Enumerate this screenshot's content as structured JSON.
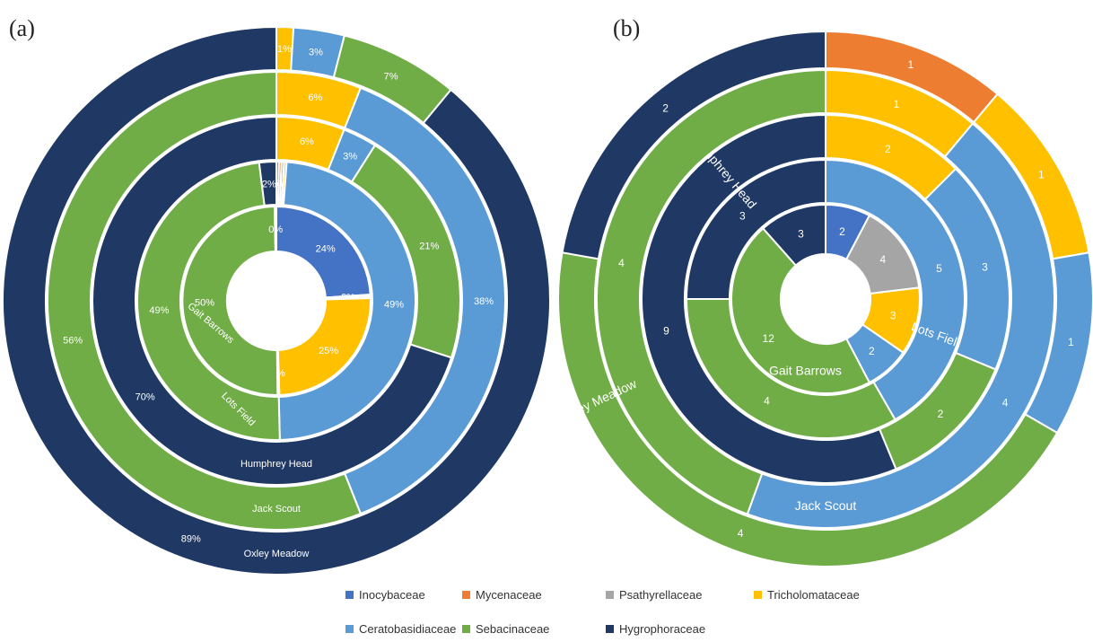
{
  "colors": {
    "Inocybaceae": "#4472c4",
    "Mycenaceae": "#ed7d31",
    "Psathyrellaceae": "#a5a5a5",
    "Tricholomataceae": "#ffc000",
    "Ceratobasidiaceae": "#5b9bd5",
    "Sebacinaceae": "#70ad47",
    "Hygrophoraceae": "#1f3864"
  },
  "legend": {
    "items": [
      "Inocybaceae",
      "Mycenaceae",
      "Psathyrellaceae",
      "Tricholomataceae",
      "Ceratobasidiaceae",
      "Sebacinaceae",
      "Hygrophoraceae"
    ]
  },
  "chart_data": [
    {
      "panel_label": "(a)",
      "type": "pie",
      "subtype": "multi-ring donut (sunburst)",
      "value_unit": "percent",
      "rings": [
        {
          "name": "Gait Barrows",
          "slices": [
            {
              "family": "Inocybaceae",
              "value": 24,
              "label": "24%"
            },
            {
              "family": "Mycenaceae",
              "value": 0.3,
              "label": "0%"
            },
            {
              "family": "Psathyrellaceae",
              "value": 0.3,
              "label": "0%"
            },
            {
              "family": "Tricholomataceae",
              "value": 25,
              "label": "25%"
            },
            {
              "family": "Ceratobasidiaceae",
              "value": 0.3,
              "label": "0%"
            },
            {
              "family": "Sebacinaceae",
              "value": 50,
              "label": "50%"
            },
            {
              "family": "Hygrophoraceae",
              "value": 0.3,
              "label": "0%"
            }
          ]
        },
        {
          "name": "Lots Field",
          "slices": [
            {
              "family": "Inocybaceae",
              "value": 0.3,
              "label": "0%"
            },
            {
              "family": "Mycenaceae",
              "value": 0.3,
              "label": ""
            },
            {
              "family": "Psathyrellaceae",
              "value": 0.3,
              "label": ""
            },
            {
              "family": "Tricholomataceae",
              "value": 0.3,
              "label": "0%"
            },
            {
              "family": "Ceratobasidiaceae",
              "value": 49,
              "label": "49%"
            },
            {
              "family": "Sebacinaceae",
              "value": 49,
              "label": "49%"
            },
            {
              "family": "Hygrophoraceae",
              "value": 2,
              "label": "2%"
            }
          ]
        },
        {
          "name": "Humphrey Head",
          "slices": [
            {
              "family": "Tricholomataceae",
              "value": 6,
              "label": "6%"
            },
            {
              "family": "Ceratobasidiaceae",
              "value": 3,
              "label": "3%"
            },
            {
              "family": "Sebacinaceae",
              "value": 21,
              "label": "21%"
            },
            {
              "family": "Hygrophoraceae",
              "value": 70,
              "label": "70%"
            }
          ]
        },
        {
          "name": "Jack Scout",
          "slices": [
            {
              "family": "Tricholomataceae",
              "value": 6,
              "label": "6%"
            },
            {
              "family": "Ceratobasidiaceae",
              "value": 38,
              "label": "38%"
            },
            {
              "family": "Sebacinaceae",
              "value": 56,
              "label": "56%"
            }
          ]
        },
        {
          "name": "Oxley Meadow",
          "slices": [
            {
              "family": "Tricholomataceae",
              "value": 1,
              "label": "1%"
            },
            {
              "family": "Ceratobasidiaceae",
              "value": 3,
              "label": "3%"
            },
            {
              "family": "Sebacinaceae",
              "value": 7,
              "label": "7%"
            },
            {
              "family": "Hygrophoraceae",
              "value": 89,
              "label": "89%"
            }
          ]
        }
      ],
      "extra_labels": [
        "0%",
        "0%",
        "0%",
        "0%",
        "0%",
        "0%",
        "0%",
        "0%"
      ]
    },
    {
      "panel_label": "(b)",
      "type": "pie",
      "subtype": "multi-ring donut (sunburst)",
      "value_unit": "count",
      "rings": [
        {
          "name": "Gait Barrows",
          "slices": [
            {
              "family": "Inocybaceae",
              "value": 2,
              "label": "2"
            },
            {
              "family": "Psathyrellaceae",
              "value": 4,
              "label": "4"
            },
            {
              "family": "Tricholomataceae",
              "value": 3,
              "label": "3"
            },
            {
              "family": "Ceratobasidiaceae",
              "value": 2,
              "label": "2"
            },
            {
              "family": "Sebacinaceae",
              "value": 12,
              "label": "12"
            },
            {
              "family": "Hygrophoraceae",
              "value": 3,
              "label": "3"
            }
          ]
        },
        {
          "name": "Lots Field",
          "slices": [
            {
              "family": "Ceratobasidiaceae",
              "value": 5,
              "label": "5"
            },
            {
              "family": "Sebacinaceae",
              "value": 4,
              "label": "4"
            },
            {
              "family": "Hygrophoraceae",
              "value": 3,
              "label": "3"
            }
          ]
        },
        {
          "name": "Humphrey Head",
          "slices": [
            {
              "family": "Tricholomataceae",
              "value": 2,
              "label": "2"
            },
            {
              "family": "Ceratobasidiaceae",
              "value": 3,
              "label": "3"
            },
            {
              "family": "Sebacinaceae",
              "value": 2,
              "label": "2"
            },
            {
              "family": "Hygrophoraceae",
              "value": 9,
              "label": "9"
            }
          ]
        },
        {
          "name": "Jack Scout",
          "slices": [
            {
              "family": "Tricholomataceae",
              "value": 1,
              "label": "1"
            },
            {
              "family": "Ceratobasidiaceae",
              "value": 4,
              "label": "4"
            },
            {
              "family": "Sebacinaceae",
              "value": 4,
              "label": "4"
            }
          ]
        },
        {
          "name": "Oxley Meadow",
          "slices": [
            {
              "family": "Mycenaceae",
              "value": 1,
              "label": "1"
            },
            {
              "family": "Tricholomataceae",
              "value": 1,
              "label": "1"
            },
            {
              "family": "Ceratobasidiaceae",
              "value": 1,
              "label": "1"
            },
            {
              "family": "Sebacinaceae",
              "value": 4,
              "label": "4"
            },
            {
              "family": "Hygrophoraceae",
              "value": 2,
              "label": "2"
            }
          ]
        }
      ],
      "extra_labels": []
    }
  ]
}
